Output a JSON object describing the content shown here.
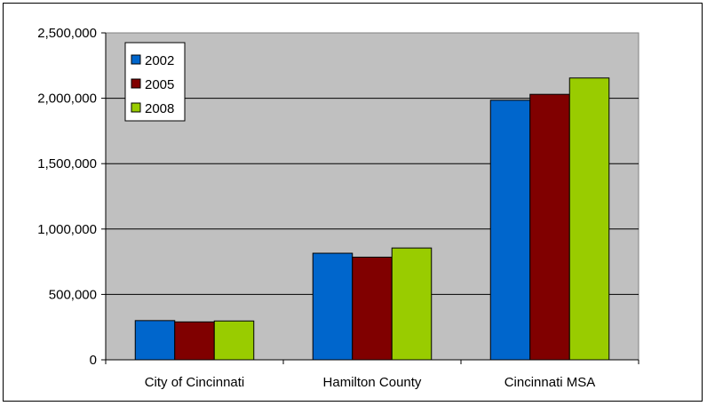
{
  "chart_data": {
    "type": "bar",
    "categories": [
      "City of Cincinnati",
      "Hamilton County",
      "Cincinnati MSA"
    ],
    "series": [
      {
        "name": "2002",
        "color": "#0066CC",
        "values": [
          300000,
          815000,
          1985000
        ]
      },
      {
        "name": "2005",
        "color": "#800000",
        "values": [
          290000,
          785000,
          2030000
        ]
      },
      {
        "name": "2008",
        "color": "#99CC00",
        "values": [
          297000,
          855000,
          2155000
        ]
      }
    ],
    "y_ticks": [
      "0",
      "500,000",
      "1,000,000",
      "1,500,000",
      "2,000,000",
      "2,500,000"
    ],
    "ylim": [
      0,
      2500000
    ],
    "grid": true,
    "plot_background": "#C0C0C0",
    "legend_position": "top-left"
  }
}
